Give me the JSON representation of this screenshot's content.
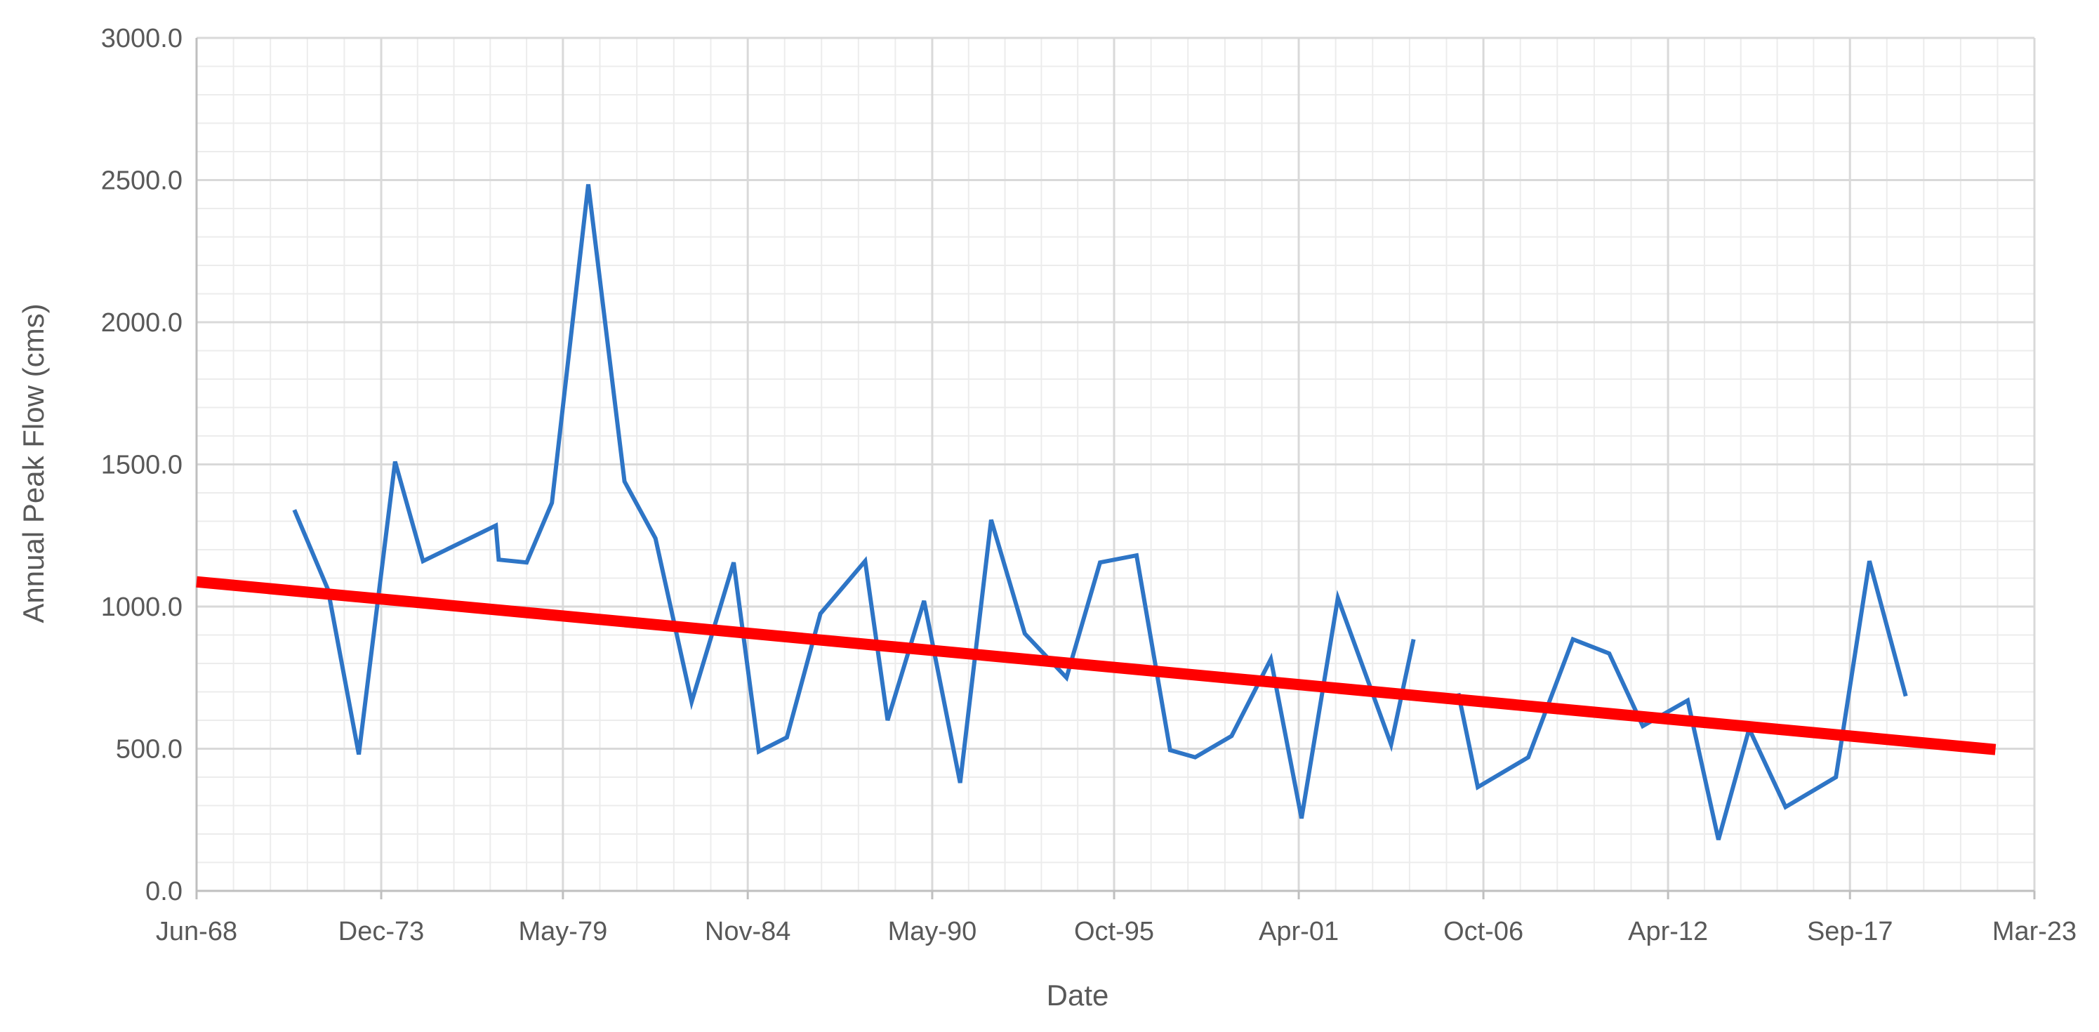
{
  "chart_data": {
    "type": "line",
    "title": "",
    "xlabel": "Date",
    "ylabel": "Annual Peak Flow (cms)",
    "x_is_date": true,
    "xlim": [
      "1968-06-01",
      "2023-03-01"
    ],
    "ylim": [
      0,
      3000
    ],
    "y_major_step": 500,
    "y_minor_step": 100,
    "grid": true,
    "legend": "none",
    "x_tick_labels": [
      "Jun-68",
      "Dec-73",
      "May-79",
      "Nov-84",
      "May-90",
      "Oct-95",
      "Apr-01",
      "Oct-06",
      "Apr-12",
      "Sep-17",
      "Mar-23"
    ],
    "x_tick_dates": [
      "1968-06-01",
      "1973-12-01",
      "1979-05-01",
      "1984-11-01",
      "1990-05-01",
      "1995-10-01",
      "2001-04-01",
      "2006-10-01",
      "2012-04-01",
      "2017-09-01",
      "2023-03-01"
    ],
    "y_tick_labels": [
      "0.0",
      "500.0",
      "1000.0",
      "1500.0",
      "2000.0",
      "2500.0",
      "3000.0"
    ],
    "y_tick_values": [
      0,
      500,
      1000,
      1500,
      2000,
      2500,
      3000
    ],
    "colors": {
      "series": "#2e75c6",
      "trend": "#ff0000",
      "grid": "#d9d9d9",
      "axis": "#bfbfbf",
      "text": "#595959"
    },
    "series": [
      {
        "segments": [
          [
            [
              "1971-05-01",
              1340
            ],
            [
              "1972-05-01",
              1060
            ],
            [
              "1973-04-01",
              480
            ],
            [
              "1974-05-01",
              1510
            ],
            [
              "1975-03-01",
              1160
            ],
            [
              "1977-05-01",
              1285
            ],
            [
              "1977-06-01",
              1165
            ],
            [
              "1978-04-01",
              1155
            ],
            [
              "1979-01-01",
              1365
            ],
            [
              "1980-02-01",
              2485
            ],
            [
              "1981-03-01",
              1440
            ],
            [
              "1982-02-01",
              1240
            ],
            [
              "1983-03-01",
              665
            ],
            [
              "1984-06-01",
              1155
            ],
            [
              "1985-03-01",
              490
            ],
            [
              "1986-01-01",
              540
            ],
            [
              "1987-01-01",
              975
            ],
            [
              "1988-05-01",
              1160
            ],
            [
              "1989-01-01",
              600
            ],
            [
              "1990-02-01",
              1020
            ],
            [
              "1991-03-01",
              380
            ],
            [
              "1992-02-01",
              1305
            ],
            [
              "1993-02-01",
              905
            ],
            [
              "1994-05-01",
              750
            ],
            [
              "1995-05-01",
              1155
            ],
            [
              "1996-06-01",
              1180
            ],
            [
              "1997-06-01",
              495
            ],
            [
              "1998-03-01",
              470
            ],
            [
              "1999-04-01",
              545
            ],
            [
              "2000-06-01",
              815
            ],
            [
              "2001-05-01",
              255
            ],
            [
              "2002-06-01",
              1030
            ],
            [
              "2004-01-01",
              515
            ],
            [
              "2004-09-01",
              885
            ]
          ],
          [
            [
              "2006-01-01",
              695
            ],
            [
              "2006-08-01",
              365
            ],
            [
              "2008-02-01",
              470
            ],
            [
              "2009-06-01",
              885
            ],
            [
              "2010-07-01",
              835
            ],
            [
              "2011-07-01",
              580
            ],
            [
              "2012-11-01",
              670
            ],
            [
              "2013-10-01",
              180
            ],
            [
              "2014-09-01",
              570
            ],
            [
              "2015-10-01",
              295
            ],
            [
              "2017-04-01",
              400
            ],
            [
              "2018-04-01",
              1160
            ],
            [
              "2019-05-01",
              685
            ]
          ]
        ]
      }
    ],
    "trendline": [
      [
        "1968-06-01",
        1087
      ],
      [
        "2022-01-01",
        497
      ]
    ]
  }
}
